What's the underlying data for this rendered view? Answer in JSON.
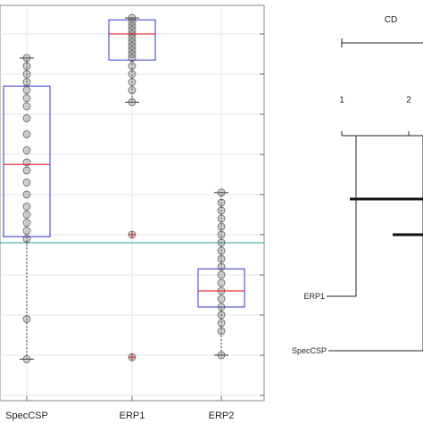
{
  "chart_data": [
    {
      "type": "box",
      "categories": [
        "SpecCSP",
        "ERP1",
        "ERP2"
      ],
      "ylim": [
        -0.5,
        9.4
      ],
      "grid": true,
      "reference_line": 3.8,
      "colors": {
        "box": "#3333cc",
        "median": "#e8303a",
        "reference": "#2a9d9d",
        "whisker": "#333333",
        "outlier": "#c0392b"
      },
      "boxes": [
        {
          "category": "SpecCSP",
          "q1": 3.95,
          "median": 5.75,
          "q3": 7.7,
          "whisker_low": 0.9,
          "whisker_high": 8.4,
          "outliers": [],
          "points": [
            8.4,
            8.2,
            8.0,
            7.8,
            7.6,
            7.4,
            7.2,
            6.9,
            6.5,
            6.1,
            5.8,
            5.6,
            5.3,
            5.0,
            4.7,
            4.5,
            4.3,
            4.1,
            3.9,
            1.9,
            0.9
          ]
        },
        {
          "category": "ERP1",
          "q1": 8.35,
          "median": 9.0,
          "q3": 9.35,
          "whisker_low": 7.3,
          "whisker_high": 9.4,
          "outliers": [
            4.0,
            0.95
          ],
          "points": [
            9.4,
            9.3,
            9.2,
            9.1,
            9.0,
            8.9,
            8.8,
            8.7,
            8.6,
            8.5,
            8.4,
            8.2,
            8.0,
            7.8,
            7.6,
            7.3
          ]
        },
        {
          "category": "ERP2",
          "q1": 2.2,
          "median": 2.6,
          "q3": 3.15,
          "whisker_low": 1.0,
          "whisker_high": 5.05,
          "outliers": [],
          "points": [
            5.05,
            4.8,
            4.6,
            4.4,
            4.2,
            4.0,
            3.8,
            3.6,
            3.4,
            3.2,
            3.0,
            2.8,
            2.6,
            2.4,
            2.2,
            2.0,
            1.8,
            1.6,
            1.0
          ]
        }
      ]
    },
    {
      "type": "critical-difference",
      "cd_label": "CD",
      "axis_ticks": [
        "1",
        "2"
      ],
      "axis_tick_values": [
        1,
        2
      ],
      "ranked_methods": [
        {
          "name": "ERP1",
          "rank": 1.28
        },
        {
          "name": "SpecCSP",
          "rank": 2.3
        }
      ]
    }
  ]
}
